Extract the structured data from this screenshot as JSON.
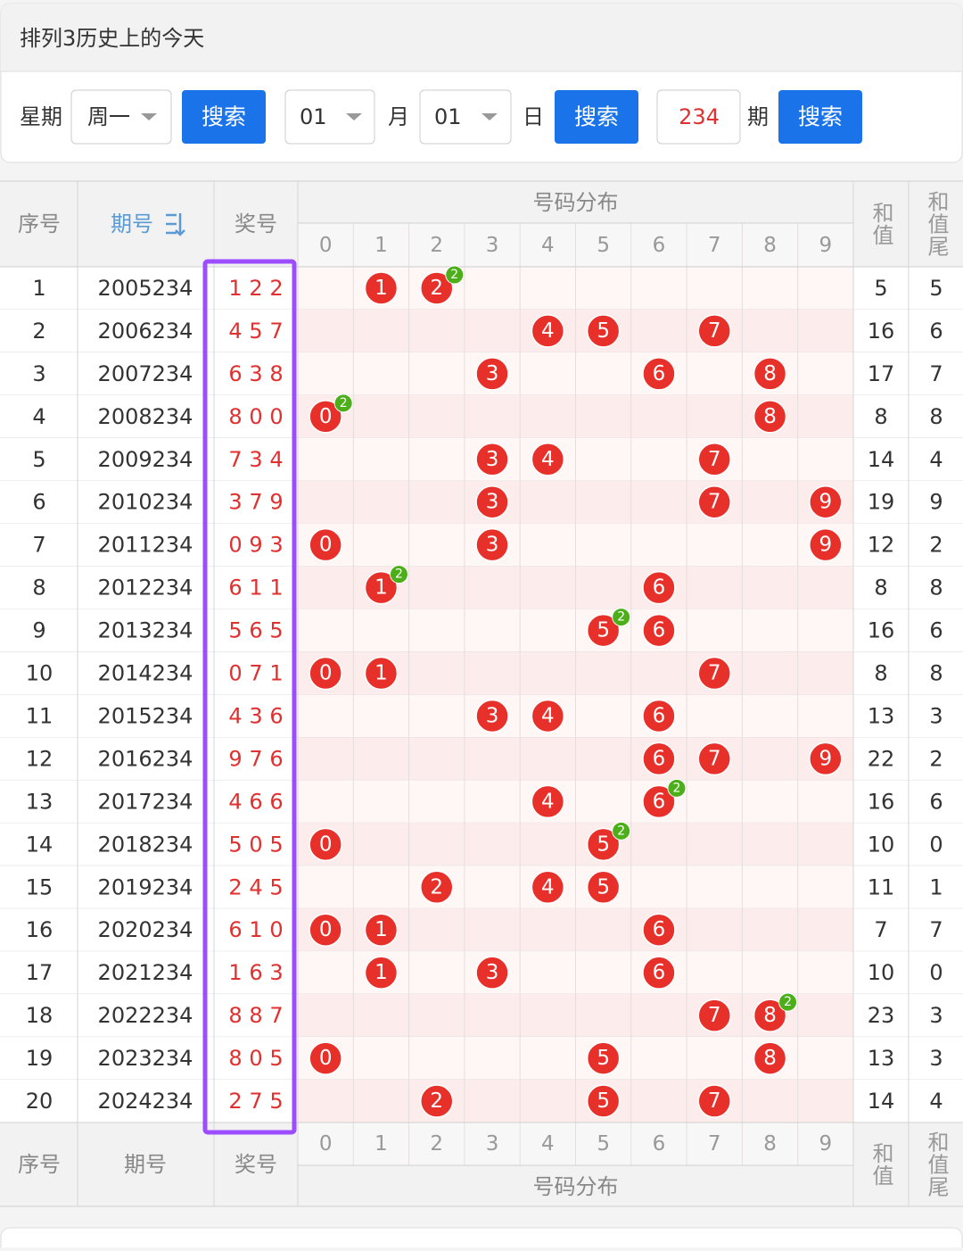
{
  "header": {
    "title": "排列3历史上的今天"
  },
  "search": {
    "weekday_label": "星期",
    "weekday": "周一",
    "button_1": "搜索",
    "month": "01",
    "month_label": "月",
    "day": "01",
    "day_label": "日",
    "button_2": "搜索",
    "period": "234",
    "period_label": "期",
    "button_3": "搜索"
  },
  "table": {
    "headers": {
      "index": "序号",
      "issue": "期号",
      "draw": "奖号",
      "distribution": "号码分布",
      "digits": [
        "0",
        "1",
        "2",
        "3",
        "4",
        "5",
        "6",
        "7",
        "8",
        "9"
      ],
      "sum": "和值",
      "sum_tail": "和值尾"
    },
    "rows": [
      {
        "index": 1,
        "issue": "2005234",
        "draw": [
          1,
          2,
          2
        ],
        "repeat": 2,
        "sum": 5,
        "tail": 5
      },
      {
        "index": 2,
        "issue": "2006234",
        "draw": [
          4,
          5,
          7
        ],
        "sum": 16,
        "tail": 6
      },
      {
        "index": 3,
        "issue": "2007234",
        "draw": [
          6,
          3,
          8
        ],
        "sum": 17,
        "tail": 7
      },
      {
        "index": 4,
        "issue": "2008234",
        "draw": [
          8,
          0,
          0
        ],
        "repeat": 2,
        "sum": 8,
        "tail": 8
      },
      {
        "index": 5,
        "issue": "2009234",
        "draw": [
          7,
          3,
          4
        ],
        "sum": 14,
        "tail": 4
      },
      {
        "index": 6,
        "issue": "2010234",
        "draw": [
          3,
          7,
          9
        ],
        "sum": 19,
        "tail": 9
      },
      {
        "index": 7,
        "issue": "2011234",
        "draw": [
          0,
          9,
          3
        ],
        "sum": 12,
        "tail": 2
      },
      {
        "index": 8,
        "issue": "2012234",
        "draw": [
          6,
          1,
          1
        ],
        "repeat": 2,
        "sum": 8,
        "tail": 8
      },
      {
        "index": 9,
        "issue": "2013234",
        "draw": [
          5,
          6,
          5
        ],
        "repeat": 2,
        "sum": 16,
        "tail": 6
      },
      {
        "index": 10,
        "issue": "2014234",
        "draw": [
          0,
          7,
          1
        ],
        "sum": 8,
        "tail": 8
      },
      {
        "index": 11,
        "issue": "2015234",
        "draw": [
          4,
          3,
          6
        ],
        "sum": 13,
        "tail": 3
      },
      {
        "index": 12,
        "issue": "2016234",
        "draw": [
          9,
          7,
          6
        ],
        "sum": 22,
        "tail": 2
      },
      {
        "index": 13,
        "issue": "2017234",
        "draw": [
          4,
          6,
          6
        ],
        "repeat": 2,
        "sum": 16,
        "tail": 6
      },
      {
        "index": 14,
        "issue": "2018234",
        "draw": [
          5,
          0,
          5
        ],
        "repeat": 2,
        "sum": 10,
        "tail": 0
      },
      {
        "index": 15,
        "issue": "2019234",
        "draw": [
          2,
          4,
          5
        ],
        "sum": 11,
        "tail": 1
      },
      {
        "index": 16,
        "issue": "2020234",
        "draw": [
          6,
          1,
          0
        ],
        "sum": 7,
        "tail": 7
      },
      {
        "index": 17,
        "issue": "2021234",
        "draw": [
          1,
          6,
          3
        ],
        "sum": 10,
        "tail": 0
      },
      {
        "index": 18,
        "issue": "2022234",
        "draw": [
          8,
          8,
          7
        ],
        "repeat": 2,
        "sum": 23,
        "tail": 3
      },
      {
        "index": 19,
        "issue": "2023234",
        "draw": [
          8,
          0,
          5
        ],
        "sum": 13,
        "tail": 3
      },
      {
        "index": 20,
        "issue": "2024234",
        "draw": [
          2,
          7,
          5
        ],
        "sum": 14,
        "tail": 4
      }
    ]
  }
}
